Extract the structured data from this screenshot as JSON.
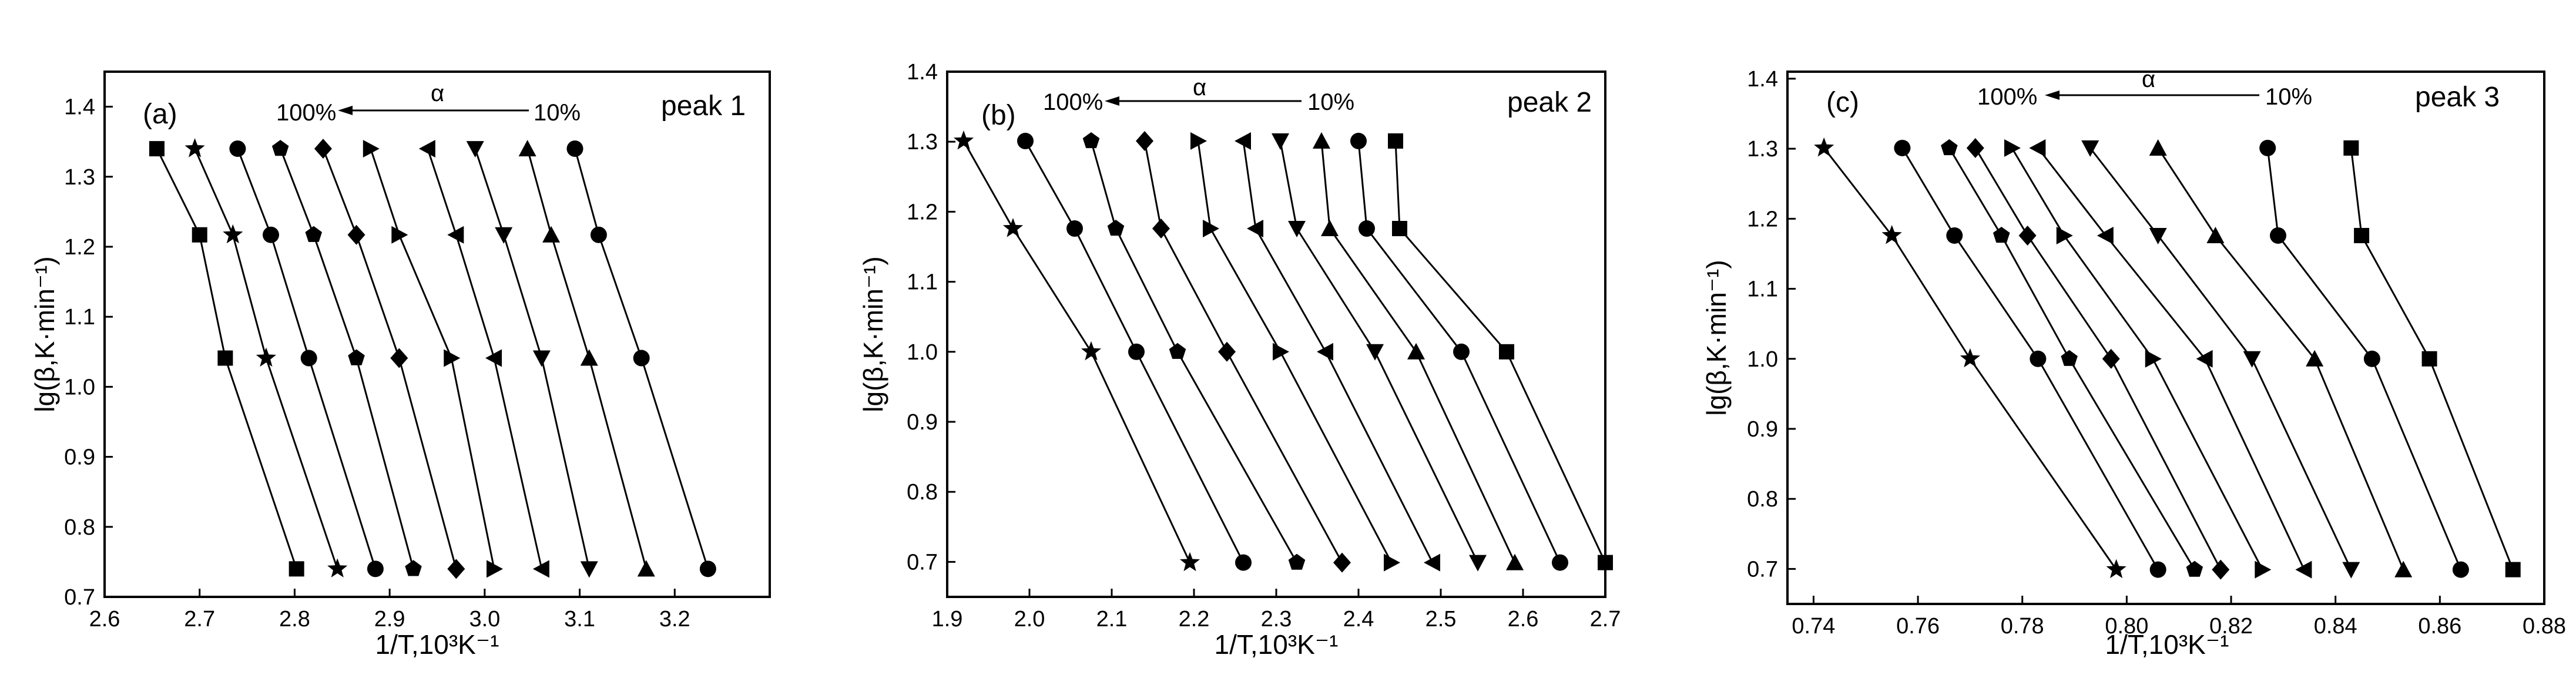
{
  "figure": {
    "palette": {
      "line": "#000000",
      "background": "#ffffff"
    }
  },
  "chart_data": [
    {
      "type": "scatter",
      "panel_label": "(a)",
      "peak_label": "peak 1",
      "alpha_arrow": {
        "left": "100%",
        "symbol": "α",
        "right": "10%"
      },
      "xlabel": "1/T,10³K⁻¹",
      "ylabel": "lg(β,K·min⁻¹)",
      "xlim": [
        2.6,
        3.3
      ],
      "ylim": [
        0.7,
        1.45
      ],
      "xticks": [
        2.6,
        2.7,
        2.8,
        2.9,
        3.0,
        3.1,
        3.2
      ],
      "xtick_labels": [
        "2.6",
        "2.7",
        "2.8",
        "2.9",
        "3.0",
        "3.1",
        "3.2"
      ],
      "yticks": [
        0.7,
        0.8,
        0.9,
        1.0,
        1.1,
        1.2,
        1.3,
        1.4
      ],
      "ytick_labels": [
        "0.7",
        "0.8",
        "0.9",
        "1.0",
        "1.1",
        "1.2",
        "1.3",
        "1.4"
      ],
      "grid": false,
      "y_values": [
        1.34,
        1.217,
        1.041,
        0.74
      ],
      "series": [
        {
          "marker": "square",
          "x": [
            2.655,
            2.7,
            2.727,
            2.802
          ]
        },
        {
          "marker": "star",
          "x": [
            2.695,
            2.735,
            2.77,
            2.845
          ]
        },
        {
          "marker": "circle",
          "x": [
            2.74,
            2.775,
            2.815,
            2.885
          ]
        },
        {
          "marker": "pentagon",
          "x": [
            2.785,
            2.82,
            2.865,
            2.925
          ]
        },
        {
          "marker": "diamond",
          "x": [
            2.83,
            2.865,
            2.91,
            2.97
          ]
        },
        {
          "marker": "triangle-right",
          "x": [
            2.88,
            2.91,
            2.965,
            3.01
          ]
        },
        {
          "marker": "triangle-left",
          "x": [
            2.94,
            2.97,
            3.01,
            3.06
          ]
        },
        {
          "marker": "triangle-down",
          "x": [
            2.99,
            3.02,
            3.06,
            3.11
          ]
        },
        {
          "marker": "triangle-up",
          "x": [
            3.045,
            3.07,
            3.11,
            3.17
          ]
        },
        {
          "marker": "circle",
          "x": [
            3.095,
            3.12,
            3.165,
            3.235
          ]
        }
      ]
    },
    {
      "type": "scatter",
      "panel_label": "(b)",
      "peak_label": "peak 2",
      "alpha_arrow": {
        "left": "100%",
        "symbol": "α",
        "right": "10%"
      },
      "xlabel": "1/T,10³K⁻¹",
      "ylabel": "lg(β,K·min⁻¹)",
      "xlim": [
        1.9,
        2.7
      ],
      "ylim": [
        0.65,
        1.4
      ],
      "xticks": [
        1.9,
        2.0,
        2.1,
        2.2,
        2.3,
        2.4,
        2.5,
        2.6,
        2.7
      ],
      "xtick_labels": [
        "1.9",
        "2.0",
        "2.1",
        "2.2",
        "2.3",
        "2.4",
        "2.5",
        "2.6",
        "2.7"
      ],
      "yticks": [
        0.7,
        0.8,
        0.9,
        1.0,
        1.1,
        1.2,
        1.3,
        1.4
      ],
      "ytick_labels": [
        "0.7",
        "0.8",
        "0.9",
        "1.0",
        "1.1",
        "1.2",
        "1.3",
        "1.4"
      ],
      "grid": false,
      "y_values": [
        1.301,
        1.176,
        1.0,
        0.699
      ],
      "series": [
        {
          "marker": "star",
          "x": [
            1.92,
            1.98,
            2.075,
            2.195
          ]
        },
        {
          "marker": "circle",
          "x": [
            1.995,
            2.055,
            2.13,
            2.26
          ]
        },
        {
          "marker": "pentagon",
          "x": [
            2.075,
            2.105,
            2.18,
            2.325
          ]
        },
        {
          "marker": "diamond",
          "x": [
            2.14,
            2.16,
            2.24,
            2.38
          ]
        },
        {
          "marker": "triangle-right",
          "x": [
            2.205,
            2.22,
            2.305,
            2.44
          ]
        },
        {
          "marker": "triangle-left",
          "x": [
            2.26,
            2.275,
            2.36,
            2.49
          ]
        },
        {
          "marker": "triangle-down",
          "x": [
            2.305,
            2.325,
            2.42,
            2.545
          ]
        },
        {
          "marker": "triangle-up",
          "x": [
            2.355,
            2.365,
            2.47,
            2.59
          ]
        },
        {
          "marker": "circle",
          "x": [
            2.4,
            2.41,
            2.525,
            2.645
          ]
        },
        {
          "marker": "square",
          "x": [
            2.445,
            2.45,
            2.58,
            2.7
          ]
        }
      ]
    },
    {
      "type": "scatter",
      "panel_label": "(c)",
      "peak_label": "peak 3",
      "alpha_arrow": {
        "left": "100%",
        "symbol": "α",
        "right": "10%"
      },
      "xlabel": "1/T,10³K⁻¹",
      "ylabel": "lg(β,K·min⁻¹)",
      "xlim": [
        0.735,
        0.88
      ],
      "ylim": [
        0.65,
        1.41
      ],
      "xticks": [
        0.74,
        0.76,
        0.78,
        0.8,
        0.82,
        0.84,
        0.86,
        0.88
      ],
      "xtick_labels": [
        "0.74",
        "0.76",
        "0.78",
        "0.80",
        "0.82",
        "0.84",
        "0.86",
        "0.88"
      ],
      "yticks": [
        0.7,
        0.8,
        0.9,
        1.0,
        1.1,
        1.2,
        1.3,
        1.4
      ],
      "ytick_labels": [
        "0.7",
        "0.8",
        "0.9",
        "1.0",
        "1.1",
        "1.2",
        "1.3",
        "1.4"
      ],
      "grid": false,
      "y_values": [
        1.301,
        1.176,
        1.0,
        0.699
      ],
      "series": [
        {
          "marker": "star",
          "x": [
            0.742,
            0.755,
            0.77,
            0.798
          ]
        },
        {
          "marker": "circle",
          "x": [
            0.757,
            0.767,
            0.783,
            0.806
          ]
        },
        {
          "marker": "pentagon",
          "x": [
            0.766,
            0.776,
            0.789,
            0.813
          ]
        },
        {
          "marker": "diamond",
          "x": [
            0.771,
            0.781,
            0.797,
            0.818
          ]
        },
        {
          "marker": "triangle-right",
          "x": [
            0.778,
            0.788,
            0.805,
            0.826
          ]
        },
        {
          "marker": "triangle-left",
          "x": [
            0.783,
            0.796,
            0.815,
            0.834
          ]
        },
        {
          "marker": "triangle-down",
          "x": [
            0.793,
            0.806,
            0.824,
            0.843
          ]
        },
        {
          "marker": "triangle-up",
          "x": [
            0.806,
            0.817,
            0.836,
            0.853
          ]
        },
        {
          "marker": "circle",
          "x": [
            0.827,
            0.829,
            0.847,
            0.864
          ]
        },
        {
          "marker": "square",
          "x": [
            0.843,
            0.845,
            0.858,
            0.874
          ]
        }
      ]
    }
  ]
}
